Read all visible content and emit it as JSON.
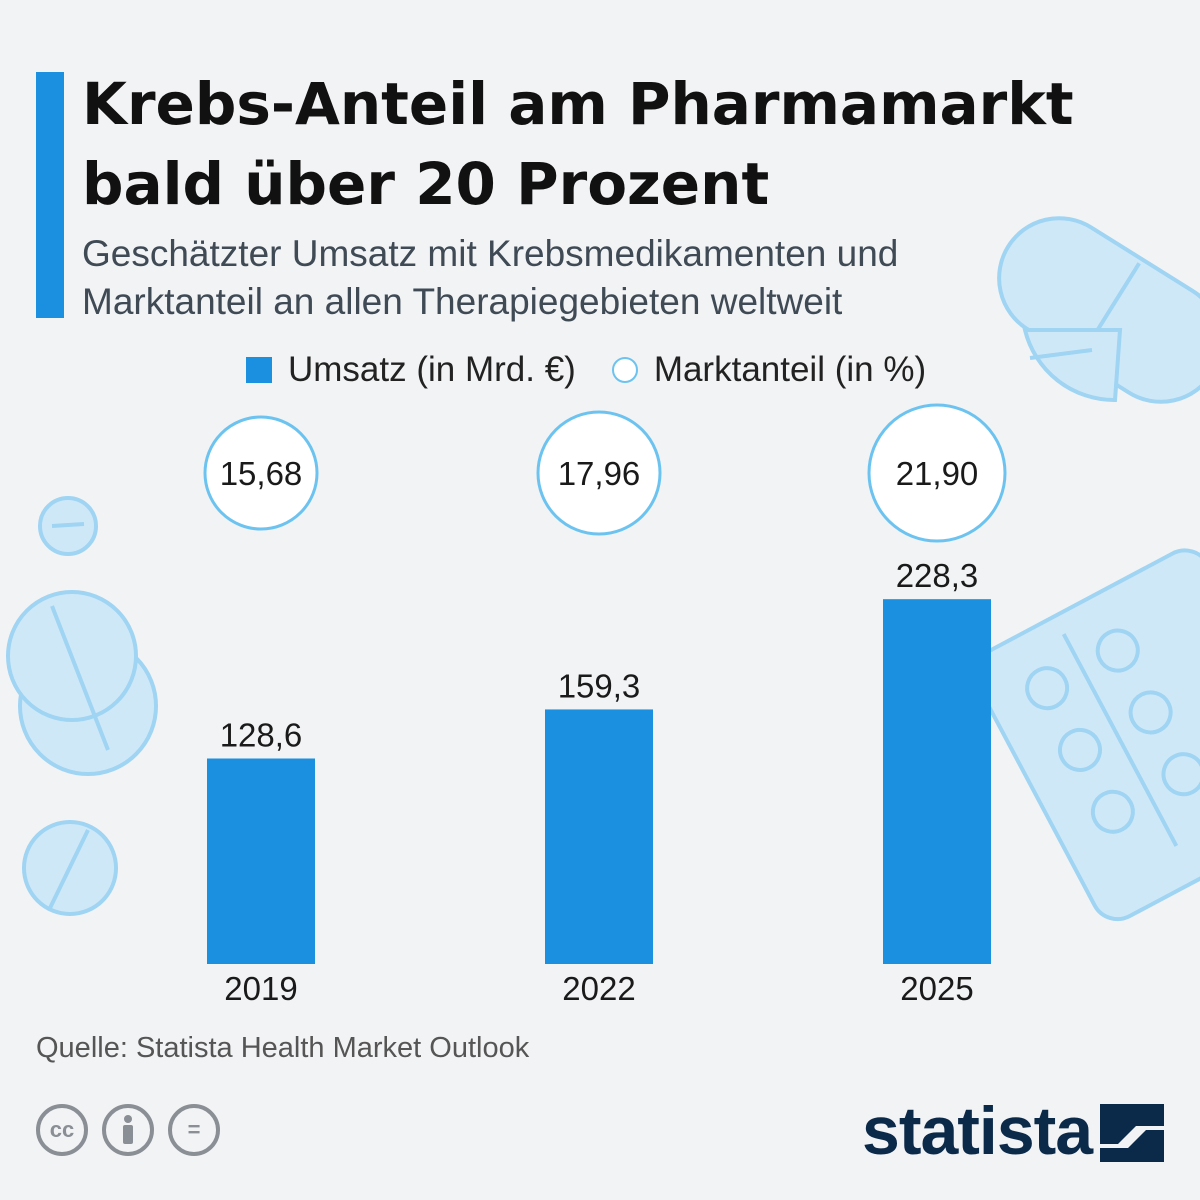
{
  "title": "Krebs-Anteil am Pharmamarkt bald über 20 Prozent",
  "subtitle": "Geschätzter Umsatz mit Krebsmedikamenten und Marktanteil an allen Therapiegebieten weltweit",
  "legend": {
    "bar_label": "Umsatz (in Mrd. €)",
    "circle_label": "Marktanteil (in %)"
  },
  "source": "Quelle: Statista Health Market Outlook",
  "license_icons": [
    "cc-icon",
    "attribution-icon",
    "no-derivatives-icon"
  ],
  "license_labels": [
    "cc",
    "",
    "="
  ],
  "brand": "statista",
  "colors": {
    "bar": "#1b8fe0",
    "circle_stroke": "#6cc3f0",
    "accent": "#1b8fe0",
    "background": "#f2f3f5",
    "brand": "#0b2a4a"
  },
  "chart_data": {
    "type": "bar",
    "categories": [
      "2019",
      "2022",
      "2025"
    ],
    "series": [
      {
        "name": "Umsatz (in Mrd. €)",
        "values": [
          128.6,
          159.3,
          228.3
        ],
        "labels": [
          "128,6",
          "159,3",
          "228,3"
        ]
      },
      {
        "name": "Marktanteil (in %)",
        "values": [
          15.68,
          17.96,
          21.9
        ],
        "labels": [
          "15,68",
          "17,96",
          "21,90"
        ]
      }
    ],
    "title": "Krebs-Anteil am Pharmamarkt bald über 20 Prozent",
    "xlabel": "",
    "ylabel": "",
    "grid": false,
    "legend_position": "top"
  }
}
